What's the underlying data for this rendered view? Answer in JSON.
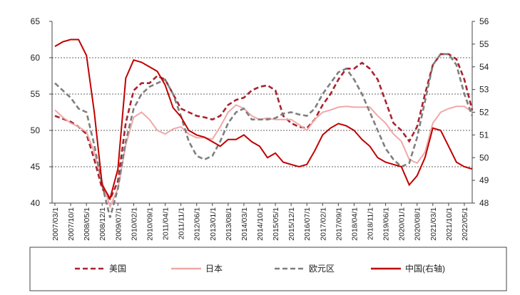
{
  "chart_data": {
    "type": "line",
    "categories": [
      "2007/03/1",
      null,
      "2007/10/1",
      null,
      "2008/05/1",
      null,
      "2008/12/1",
      null,
      "2009/07/1",
      null,
      "2010/02/1",
      null,
      "2010/09/1",
      null,
      "2011/04/1",
      null,
      "2011/11/1",
      null,
      "2012/06/1",
      null,
      "2013/01/1",
      null,
      "2013/08/1",
      null,
      "2014/03/1",
      null,
      "2014/10/1",
      null,
      "2015/05/1",
      null,
      "2015/12/1",
      null,
      "2016/07/1",
      null,
      "2017/02/1",
      null,
      "2017/09/1",
      null,
      "2018/04/1",
      null,
      "2018/11/1",
      null,
      "2019/06/1",
      null,
      "2020/01/1",
      null,
      "2020/08/1",
      null,
      "2021/03/1",
      null,
      "2021/10/1",
      null,
      "2022/05/1",
      null
    ],
    "series": [
      {
        "name": "美国",
        "color": "#a8232e",
        "dashed": true,
        "values": [
          52,
          51.6,
          51.2,
          50.5,
          49.5,
          46,
          42,
          40.5,
          43,
          51,
          55.5,
          56.5,
          56.5,
          57.5,
          57,
          55,
          53,
          52.5,
          52,
          51.8,
          51.5,
          52,
          53.5,
          54.2,
          54.5,
          55.5,
          56,
          56.2,
          55.5,
          52,
          51,
          50.5,
          50.3,
          51.5,
          53.5,
          55,
          57,
          58.5,
          58.5,
          59.3,
          58.5,
          57,
          54,
          51,
          50,
          48.5,
          50.5,
          55,
          59,
          60.5,
          60.5,
          59.8,
          57,
          52.8
        ]
      },
      {
        "name": "日本",
        "color": "#f0a8a8",
        "dashed": false,
        "values": [
          52.8,
          51.8,
          51,
          50.5,
          49.8,
          47,
          43,
          39.5,
          42,
          48,
          51.8,
          52.5,
          51.5,
          50,
          49.5,
          50.2,
          50.5,
          49.5,
          49,
          49,
          48.8,
          50.5,
          52.5,
          53.5,
          53,
          52,
          51.5,
          51.7,
          51.5,
          51.5,
          51.5,
          50.8,
          50,
          51.5,
          52.5,
          52.8,
          53.2,
          53.3,
          53.2,
          53.2,
          53.2,
          52,
          51,
          49.5,
          48.5,
          46,
          45.5,
          47,
          51,
          52.5,
          53,
          53.3,
          53.3,
          52.5
        ]
      },
      {
        "name": "欧元区",
        "color": "#7f7f7f",
        "dashed": true,
        "values": [
          56.5,
          55.5,
          54.5,
          53,
          52.5,
          48,
          42.5,
          38,
          42,
          48.5,
          53,
          55,
          56,
          56.5,
          57,
          55,
          52,
          48.5,
          46.5,
          46,
          46.5,
          48.5,
          51,
          52.5,
          53,
          51.5,
          51.5,
          51.5,
          51.7,
          52.3,
          52.5,
          52.2,
          52,
          53,
          55,
          56.5,
          58,
          58.5,
          57,
          55,
          52.5,
          50,
          47.5,
          46,
          45,
          45.5,
          49,
          54,
          59,
          60.5,
          60.5,
          59,
          55,
          52
        ]
      },
      {
        "name": "中国(右轴)",
        "color": "#c00000",
        "dashed": false,
        "axis": "y2",
        "values": [
          54.9,
          55.1,
          55.2,
          55.2,
          54.5,
          52,
          48.8,
          48.2,
          49.5,
          53.5,
          54.3,
          54.2,
          54,
          53.8,
          53.2,
          52.2,
          51.8,
          51.2,
          51,
          50.9,
          50.7,
          50.5,
          50.8,
          50.8,
          51,
          50.7,
          50.5,
          50,
          50.2,
          49.8,
          49.7,
          49.6,
          49.7,
          50.3,
          51,
          51.3,
          51.5,
          51.4,
          51.2,
          50.8,
          50.5,
          50,
          49.8,
          49.7,
          49.6,
          48.8,
          49.2,
          50,
          51.3,
          51.2,
          50.5,
          49.8,
          49.6,
          49.5
        ]
      }
    ],
    "ylim": [
      40,
      65
    ],
    "yticks": [
      40,
      45,
      50,
      55,
      60,
      65
    ],
    "y2lim": [
      48,
      56
    ],
    "y2ticks": [
      48,
      49,
      50,
      51,
      52,
      53,
      54,
      55,
      56
    ],
    "grid": true,
    "legend": "bottom"
  }
}
